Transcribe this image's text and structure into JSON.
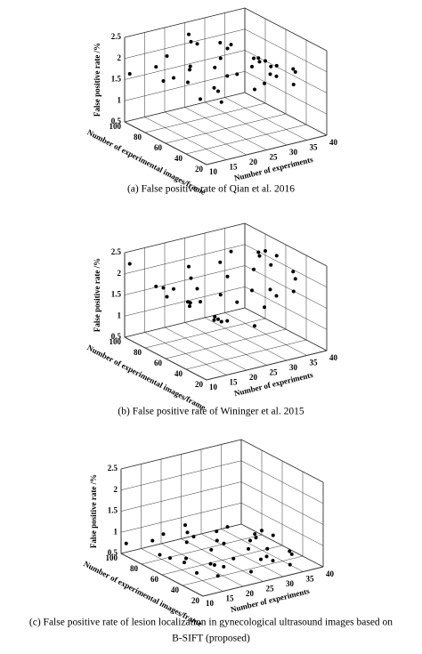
{
  "chart_data": [
    {
      "type": "scatter3d",
      "caption": [
        "(a)  False positive rate of Qian et al. 2016"
      ],
      "xlabel": "Number of experiments",
      "ylabel": "Number of experimental images/frame",
      "zlabel": "False positive rate /%",
      "xlim": [
        10,
        40
      ],
      "ylim": [
        20,
        100
      ],
      "zlim": [
        0.5,
        2.5
      ],
      "xticks": [
        10,
        15,
        20,
        25,
        30,
        35,
        40
      ],
      "yticks": [
        20,
        40,
        60,
        80,
        100
      ],
      "zticks": [
        0.5,
        1,
        1.5,
        2,
        2.5
      ],
      "grid": true,
      "color": "#000000",
      "x": [
        10,
        11,
        12,
        13,
        14,
        15,
        16,
        17,
        18,
        19,
        20,
        21,
        22,
        23,
        24,
        25,
        26,
        27,
        28,
        29,
        30,
        31,
        32,
        33,
        34,
        35,
        36,
        37,
        38,
        39,
        40,
        12,
        18,
        24,
        30,
        36
      ],
      "y": [
        95,
        30,
        70,
        50,
        85,
        25,
        60,
        40,
        90,
        35,
        75,
        55,
        20,
        80,
        45,
        65,
        100,
        30,
        70,
        50,
        85,
        40,
        60,
        25,
        90,
        55,
        35,
        75,
        45,
        65,
        80,
        60,
        40,
        90,
        30,
        70
      ],
      "z": [
        1.7,
        1.9,
        1.8,
        2.0,
        1.9,
        1.8,
        2.1,
        1.9,
        2.0,
        2.2,
        1.9,
        2.1,
        2.0,
        2.3,
        2.0,
        2.1,
        2.2,
        1.9,
        2.2,
        2.0,
        2.1,
        1.9,
        2.0,
        1.8,
        1.9,
        1.8,
        1.9,
        1.7,
        1.8,
        1.6,
        1.5,
        2.0,
        1.8,
        2.2,
        2.0,
        1.7
      ]
    },
    {
      "type": "scatter3d",
      "caption": [
        "(b)  False positive rate of Wininger et al. 2015"
      ],
      "xlabel": "Number of experiments",
      "ylabel": "Number of experimental images/frame",
      "zlabel": "False positive rate /%",
      "xlim": [
        10,
        40
      ],
      "ylim": [
        20,
        100
      ],
      "zlim": [
        0.5,
        2.5
      ],
      "xticks": [
        10,
        15,
        20,
        25,
        30,
        35,
        40
      ],
      "yticks": [
        20,
        40,
        60,
        80,
        100
      ],
      "zticks": [
        0.5,
        1,
        1.5,
        2,
        2.5
      ],
      "grid": true,
      "color": "#000000",
      "x": [
        10,
        11,
        12,
        13,
        14,
        15,
        16,
        17,
        18,
        19,
        20,
        21,
        22,
        23,
        24,
        25,
        26,
        27,
        28,
        29,
        30,
        31,
        32,
        33,
        34,
        35,
        36,
        37,
        38,
        39,
        40,
        12,
        18,
        24,
        30,
        36
      ],
      "y": [
        95,
        30,
        70,
        50,
        85,
        25,
        60,
        40,
        90,
        35,
        75,
        55,
        20,
        80,
        45,
        65,
        100,
        30,
        70,
        50,
        85,
        40,
        60,
        25,
        90,
        55,
        35,
        75,
        45,
        65,
        80,
        60,
        40,
        90,
        30,
        70
      ],
      "z": [
        2.3,
        2.2,
        2.0,
        1.9,
        1.8,
        1.7,
        1.6,
        1.5,
        1.4,
        1.5,
        1.4,
        1.3,
        1.5,
        1.6,
        1.7,
        1.6,
        1.8,
        1.7,
        1.9,
        1.8,
        2.0,
        1.9,
        2.1,
        2.0,
        2.1,
        2.2,
        2.1,
        2.2,
        2.1,
        2.2,
        2.1,
        2.1,
        1.5,
        1.7,
        1.9,
        2.2
      ]
    },
    {
      "type": "scatter3d",
      "caption": [
        "(c)  False positive rate of lesion localization in gynecological ultrasound images based on",
        "B-SIFT (proposed)"
      ],
      "xlabel": "Number of experiments",
      "ylabel": "Number of experimental images/frame",
      "zlabel": "False positive rate /%",
      "xlim": [
        10,
        40
      ],
      "ylim": [
        20,
        100
      ],
      "zlim": [
        0.5,
        2.5
      ],
      "xticks": [
        10,
        15,
        20,
        25,
        30,
        35,
        40
      ],
      "yticks": [
        20,
        40,
        60,
        80,
        100
      ],
      "zticks": [
        0.5,
        1,
        1.5,
        2,
        2.5
      ],
      "grid": true,
      "color": "#000000",
      "x": [
        10,
        11,
        12,
        13,
        14,
        15,
        16,
        17,
        18,
        19,
        20,
        21,
        22,
        23,
        24,
        25,
        26,
        27,
        28,
        29,
        30,
        31,
        32,
        33,
        34,
        35,
        36,
        37,
        38,
        39,
        40,
        12,
        18,
        24,
        30,
        36
      ],
      "y": [
        95,
        30,
        70,
        50,
        85,
        25,
        60,
        40,
        90,
        35,
        75,
        55,
        20,
        80,
        45,
        65,
        100,
        30,
        70,
        50,
        85,
        40,
        60,
        25,
        90,
        55,
        35,
        75,
        45,
        65,
        80,
        60,
        40,
        90,
        30,
        70
      ],
      "z": [
        0.8,
        0.9,
        0.8,
        0.85,
        0.9,
        0.8,
        0.75,
        0.85,
        0.9,
        0.8,
        0.85,
        0.9,
        0.8,
        0.85,
        0.75,
        0.9,
        0.8,
        0.85,
        0.7,
        0.8,
        0.75,
        0.7,
        0.8,
        0.65,
        0.7,
        0.6,
        0.7,
        0.65,
        0.6,
        0.7,
        0.6,
        0.85,
        0.8,
        0.8,
        0.75,
        0.65
      ]
    }
  ]
}
